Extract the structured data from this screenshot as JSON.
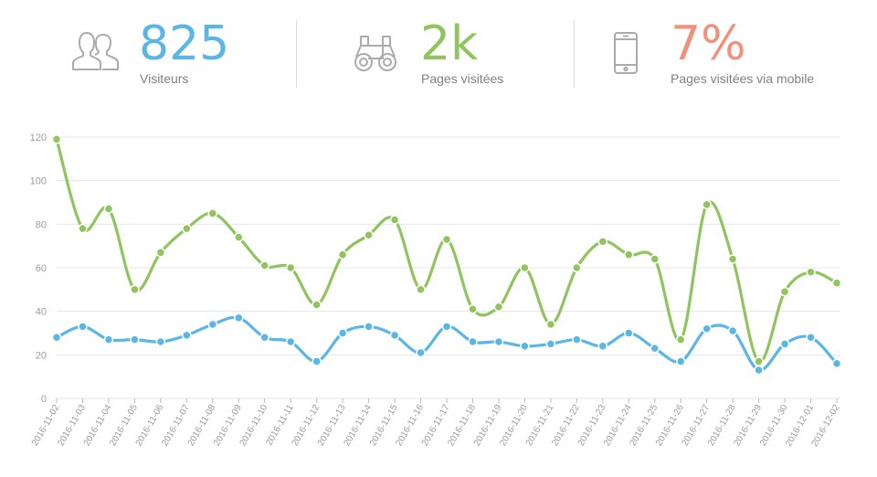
{
  "stats": [
    {
      "value": "825",
      "label": "Visiteurs",
      "color": "#5bb6e8",
      "icon": "users-icon"
    },
    {
      "value": "2k",
      "label": "Pages visitées",
      "color": "#8fc55c",
      "icon": "binoculars-icon"
    },
    {
      "value": "7%",
      "label": "Pages visitées via mobile",
      "color": "#f3907b",
      "icon": "mobile-phone-icon"
    }
  ],
  "colors": {
    "grid": "#e3e4e6",
    "axis_text": "#9a9ca1",
    "icon_stroke": "#a9abb2"
  },
  "chart_data": {
    "type": "line",
    "x": [
      "2016-11-02",
      "2016-11-03",
      "2016-11-04",
      "2016-11-05",
      "2016-11-06",
      "2016-11-07",
      "2016-11-08",
      "2016-11-09",
      "2016-11-10",
      "2016-11-11",
      "2016-11-12",
      "2016-11-13",
      "2016-11-14",
      "2016-11-15",
      "2016-11-16",
      "2016-11-17",
      "2016-11-18",
      "2016-11-19",
      "2016-11-20",
      "2016-11-21",
      "2016-11-22",
      "2016-11-23",
      "2016-11-24",
      "2016-11-25",
      "2016-11-26",
      "2016-11-27",
      "2016-11-28",
      "2016-11-29",
      "2016-11-30",
      "2016-12-01",
      "2016-12-02"
    ],
    "series": [
      {
        "color": "#8fc55c",
        "values": [
          119,
          78,
          87,
          50,
          67,
          78,
          85,
          74,
          61,
          60,
          43,
          66,
          75,
          82,
          50,
          73,
          41,
          42,
          60,
          34,
          60,
          72,
          66,
          64,
          27,
          89,
          64,
          17,
          49,
          58,
          53
        ]
      },
      {
        "color": "#5bb6e8",
        "values": [
          28,
          33,
          27,
          27,
          26,
          29,
          34,
          37,
          28,
          26,
          17,
          30,
          33,
          29,
          21,
          33,
          26,
          26,
          24,
          25,
          27,
          24,
          30,
          23,
          17,
          32,
          31,
          13,
          25,
          28,
          16
        ]
      }
    ],
    "ylim": [
      0,
      120
    ],
    "yticks": [
      0,
      20,
      40,
      60,
      80,
      100,
      120
    ],
    "grid": true
  }
}
